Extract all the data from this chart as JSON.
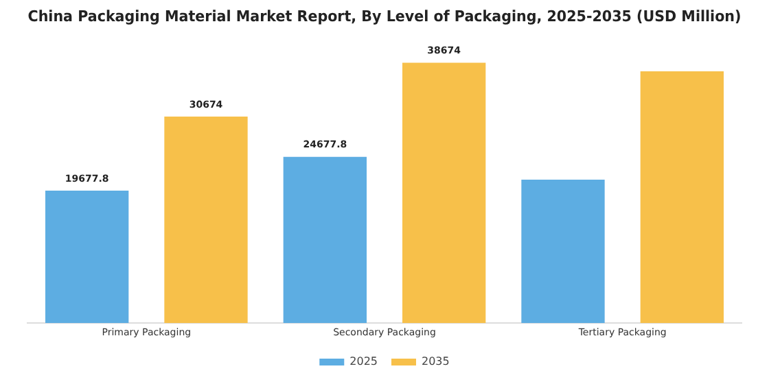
{
  "chart_data": {
    "type": "bar",
    "title": "China Packaging Material Market Report, By Level of Packaging, 2025-2035 (USD Million)",
    "categories": [
      "Primary Packaging",
      "Secondary Packaging",
      "Tertiary Packaging"
    ],
    "series": [
      {
        "name": "2025",
        "color": "#5dade2",
        "values": [
          19677.8,
          24677.8,
          21300
        ],
        "value_labels": [
          "19677.8",
          "24677.8",
          null
        ]
      },
      {
        "name": "2035",
        "color": "#f7c04a",
        "values": [
          30674,
          38674,
          37400
        ],
        "value_labels": [
          "30674",
          "38674",
          null
        ]
      }
    ],
    "grid": false,
    "legend": "bottom",
    "tick_labels": "x"
  }
}
